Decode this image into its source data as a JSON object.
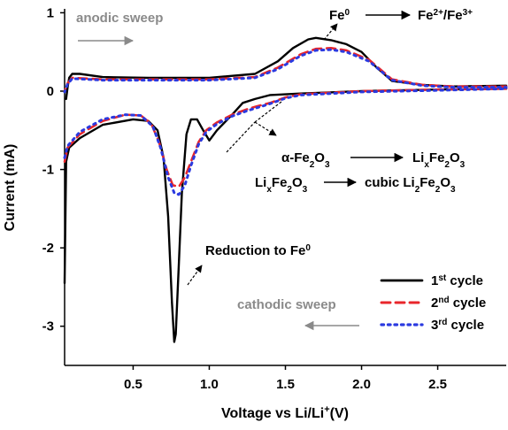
{
  "chart_data": {
    "type": "line",
    "xlabel": {
      "main": "Voltage vs  Li/Li",
      "sup": "+",
      "unit": "(V)"
    },
    "ylabel": "Current (mA)",
    "xlim": [
      0.05,
      2.95
    ],
    "ylim": [
      -3.5,
      1.05
    ],
    "x_ticks": [
      "0.5",
      "1.0",
      "1.5",
      "2.0",
      "2.5"
    ],
    "x_tick_values": [
      0.5,
      1.0,
      1.5,
      2.0,
      2.5
    ],
    "y_ticks": [
      "1",
      "0",
      "-1",
      "-2",
      "-3"
    ],
    "y_tick_values": [
      1,
      0,
      -1,
      -2,
      -3
    ],
    "legend_position": "bottom-right",
    "series": [
      {
        "name": "1st cycle",
        "name_base": "1",
        "name_sup": "st",
        "name_rest": " cycle",
        "color": "#000000",
        "dash": "solid",
        "points": [
          [
            0.05,
            -2.45
          ],
          [
            0.06,
            -0.9
          ],
          [
            0.08,
            -0.72
          ],
          [
            0.15,
            -0.6
          ],
          [
            0.3,
            -0.43
          ],
          [
            0.5,
            -0.36
          ],
          [
            0.6,
            -0.38
          ],
          [
            0.66,
            -0.5
          ],
          [
            0.7,
            -0.85
          ],
          [
            0.73,
            -1.6
          ],
          [
            0.755,
            -2.7
          ],
          [
            0.77,
            -3.2
          ],
          [
            0.78,
            -3.1
          ],
          [
            0.8,
            -2.2
          ],
          [
            0.82,
            -1.3
          ],
          [
            0.85,
            -0.55
          ],
          [
            0.88,
            -0.36
          ],
          [
            0.92,
            -0.36
          ],
          [
            0.96,
            -0.5
          ],
          [
            1.0,
            -0.63
          ],
          [
            1.05,
            -0.5
          ],
          [
            1.15,
            -0.3
          ],
          [
            1.22,
            -0.15
          ],
          [
            1.3,
            -0.1
          ],
          [
            1.4,
            -0.05
          ],
          [
            1.6,
            -0.03
          ],
          [
            2.0,
            0.0
          ],
          [
            2.5,
            0.02
          ],
          [
            2.95,
            0.03
          ],
          [
            2.95,
            0.07
          ],
          [
            2.6,
            0.06
          ],
          [
            2.4,
            0.08
          ],
          [
            2.2,
            0.13
          ],
          [
            2.1,
            0.3
          ],
          [
            2.0,
            0.5
          ],
          [
            1.9,
            0.6
          ],
          [
            1.8,
            0.65
          ],
          [
            1.7,
            0.68
          ],
          [
            1.65,
            0.66
          ],
          [
            1.55,
            0.55
          ],
          [
            1.45,
            0.38
          ],
          [
            1.3,
            0.22
          ],
          [
            1.0,
            0.17
          ],
          [
            0.6,
            0.17
          ],
          [
            0.3,
            0.18
          ],
          [
            0.15,
            0.22
          ],
          [
            0.1,
            0.22
          ],
          [
            0.08,
            0.17
          ],
          [
            0.07,
            0.05
          ],
          [
            0.06,
            -0.1
          ]
        ]
      },
      {
        "name": "2nd cycle",
        "name_base": "2",
        "name_sup": "nd",
        "name_rest": " cycle",
        "color": "#e8262b",
        "dash": "dashed",
        "points": [
          [
            0.05,
            -0.9
          ],
          [
            0.07,
            -0.72
          ],
          [
            0.15,
            -0.55
          ],
          [
            0.3,
            -0.38
          ],
          [
            0.45,
            -0.3
          ],
          [
            0.55,
            -0.31
          ],
          [
            0.62,
            -0.42
          ],
          [
            0.67,
            -0.65
          ],
          [
            0.72,
            -1.0
          ],
          [
            0.76,
            -1.2
          ],
          [
            0.8,
            -1.22
          ],
          [
            0.84,
            -1.1
          ],
          [
            0.88,
            -0.9
          ],
          [
            0.93,
            -0.65
          ],
          [
            0.98,
            -0.5
          ],
          [
            1.05,
            -0.4
          ],
          [
            1.15,
            -0.3
          ],
          [
            1.25,
            -0.23
          ],
          [
            1.3,
            -0.2
          ],
          [
            1.4,
            -0.15
          ],
          [
            1.5,
            -0.08
          ],
          [
            1.6,
            -0.04
          ],
          [
            2.0,
            0.0
          ],
          [
            2.5,
            0.02
          ],
          [
            2.95,
            0.03
          ],
          [
            2.95,
            0.06
          ],
          [
            2.6,
            0.06
          ],
          [
            2.4,
            0.08
          ],
          [
            2.2,
            0.15
          ],
          [
            2.05,
            0.4
          ],
          [
            1.9,
            0.52
          ],
          [
            1.8,
            0.55
          ],
          [
            1.7,
            0.54
          ],
          [
            1.6,
            0.47
          ],
          [
            1.45,
            0.3
          ],
          [
            1.3,
            0.18
          ],
          [
            1.0,
            0.15
          ],
          [
            0.6,
            0.15
          ],
          [
            0.3,
            0.15
          ],
          [
            0.1,
            0.17
          ],
          [
            0.07,
            0.1
          ],
          [
            0.05,
            0.0
          ]
        ]
      },
      {
        "name": "3rd cycle",
        "name_base": "3",
        "name_sup": "rd",
        "name_rest": " cycle",
        "color": "#2b3ae0",
        "dash": "dotted",
        "points": [
          [
            0.05,
            -0.85
          ],
          [
            0.07,
            -0.7
          ],
          [
            0.15,
            -0.52
          ],
          [
            0.3,
            -0.36
          ],
          [
            0.45,
            -0.3
          ],
          [
            0.55,
            -0.31
          ],
          [
            0.63,
            -0.45
          ],
          [
            0.68,
            -0.72
          ],
          [
            0.73,
            -1.1
          ],
          [
            0.77,
            -1.3
          ],
          [
            0.8,
            -1.32
          ],
          [
            0.84,
            -1.2
          ],
          [
            0.88,
            -0.95
          ],
          [
            0.93,
            -0.68
          ],
          [
            0.98,
            -0.52
          ],
          [
            1.05,
            -0.42
          ],
          [
            1.15,
            -0.32
          ],
          [
            1.25,
            -0.25
          ],
          [
            1.3,
            -0.22
          ],
          [
            1.4,
            -0.16
          ],
          [
            1.5,
            -0.09
          ],
          [
            1.6,
            -0.05
          ],
          [
            2.0,
            -0.01
          ],
          [
            2.5,
            0.01
          ],
          [
            2.95,
            0.03
          ],
          [
            2.95,
            0.05
          ],
          [
            2.6,
            0.05
          ],
          [
            2.4,
            0.07
          ],
          [
            2.2,
            0.14
          ],
          [
            2.05,
            0.38
          ],
          [
            1.9,
            0.5
          ],
          [
            1.8,
            0.53
          ],
          [
            1.7,
            0.52
          ],
          [
            1.6,
            0.45
          ],
          [
            1.45,
            0.28
          ],
          [
            1.3,
            0.17
          ],
          [
            1.0,
            0.14
          ],
          [
            0.6,
            0.14
          ],
          [
            0.3,
            0.14
          ],
          [
            0.1,
            0.16
          ],
          [
            0.07,
            0.09
          ],
          [
            0.05,
            -0.01
          ]
        ]
      }
    ],
    "annotations": {
      "anodic": "anodic sweep",
      "cathodic": "cathodic sweep",
      "fe_ox_from": "Fe",
      "fe_ox_from_sup": "0",
      "fe_ox_to_a": "Fe",
      "fe_ox_to_a_sup": "2+",
      "fe_ox_to_mid": "/Fe",
      "fe_ox_to_b_sup": "3+",
      "r1_from_a": "α-Fe",
      "r1_from_sub1": "2",
      "r1_from_b": "O",
      "r1_from_sub2": "3",
      "r1_to_a": "Li",
      "r1_to_sub1": "x",
      "r1_to_b": "Fe",
      "r1_to_sub2": "2",
      "r1_to_c": "O",
      "r1_to_sub3": "3",
      "r2_from_a": "Li",
      "r2_from_sub1": "x",
      "r2_from_b": "Fe",
      "r2_from_sub2": "2",
      "r2_from_c": "O",
      "r2_from_sub3": "3",
      "r2_to_a": "cubic Li",
      "r2_to_sub1": "2",
      "r2_to_b": "Fe",
      "r2_to_sub2": "2",
      "r2_to_c": "O",
      "r2_to_sub3": "3",
      "reduction": "Reduction to Fe",
      "reduction_sup": "0"
    }
  }
}
